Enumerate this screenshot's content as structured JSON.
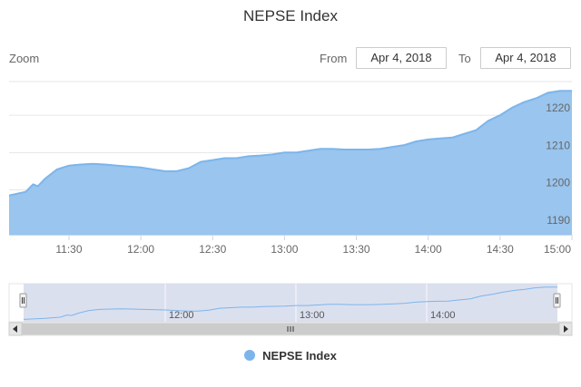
{
  "chart_data": {
    "type": "area",
    "title": "NEPSE Index",
    "xlabel": "",
    "ylabel": "",
    "x_ticks": [
      "11:30",
      "12:00",
      "12:30",
      "13:00",
      "13:30",
      "14:00",
      "14:30",
      "15:00"
    ],
    "y_ticks": [
      1190,
      1200,
      1210,
      1220
    ],
    "xlim": [
      "11:05",
      "15:00"
    ],
    "ylim": [
      1188,
      1229
    ],
    "grid": true,
    "legend_position": "bottom-center",
    "series": [
      {
        "name": "NEPSE Index",
        "color": "#7cb5ec",
        "x": [
          "11:05",
          "11:12",
          "11:15",
          "11:17",
          "11:20",
          "11:22",
          "11:25",
          "11:30",
          "11:35",
          "11:40",
          "11:45",
          "11:50",
          "12:00",
          "12:05",
          "12:10",
          "12:15",
          "12:20",
          "12:25",
          "12:30",
          "12:35",
          "12:40",
          "12:45",
          "12:50",
          "12:55",
          "13:00",
          "13:05",
          "13:10",
          "13:15",
          "13:20",
          "13:25",
          "13:30",
          "13:35",
          "13:40",
          "13:45",
          "13:50",
          "13:55",
          "14:00",
          "14:05",
          "14:10",
          "14:15",
          "14:20",
          "14:25",
          "14:30",
          "14:35",
          "14:40",
          "14:45",
          "14:50",
          "14:55",
          "15:00"
        ],
        "values": [
          1198.5,
          1199.5,
          1201.5,
          1201.0,
          1203.0,
          1204.0,
          1205.5,
          1206.5,
          1206.8,
          1207.0,
          1206.8,
          1206.5,
          1206.0,
          1205.5,
          1205.0,
          1205.0,
          1205.8,
          1207.5,
          1208.0,
          1208.5,
          1208.5,
          1209.0,
          1209.2,
          1209.5,
          1210.0,
          1210.0,
          1210.5,
          1211.0,
          1211.0,
          1210.8,
          1210.8,
          1210.8,
          1211.0,
          1211.5,
          1212.0,
          1213.0,
          1213.5,
          1213.8,
          1214.0,
          1215.0,
          1216.0,
          1218.5,
          1220.0,
          1222.0,
          1223.5,
          1224.5,
          1226.0,
          1226.5,
          1226.5
        ]
      }
    ],
    "navigator": {
      "x_ticks": [
        "12:00",
        "13:00",
        "14:00"
      ],
      "xlim": [
        "10:55",
        "15:00"
      ],
      "ylim": [
        1197,
        1228
      ]
    }
  },
  "range_selector": {
    "zoom_label": "Zoom",
    "from_label": "From",
    "from_value": "Apr 4, 2018",
    "to_label": "To",
    "to_value": "Apr 4, 2018"
  },
  "colors": {
    "series_line": "#7cb5ec",
    "series_fill": "#99c5ee",
    "navigator_mask": "#cfd6ea",
    "grid": "#e6e6e6"
  }
}
